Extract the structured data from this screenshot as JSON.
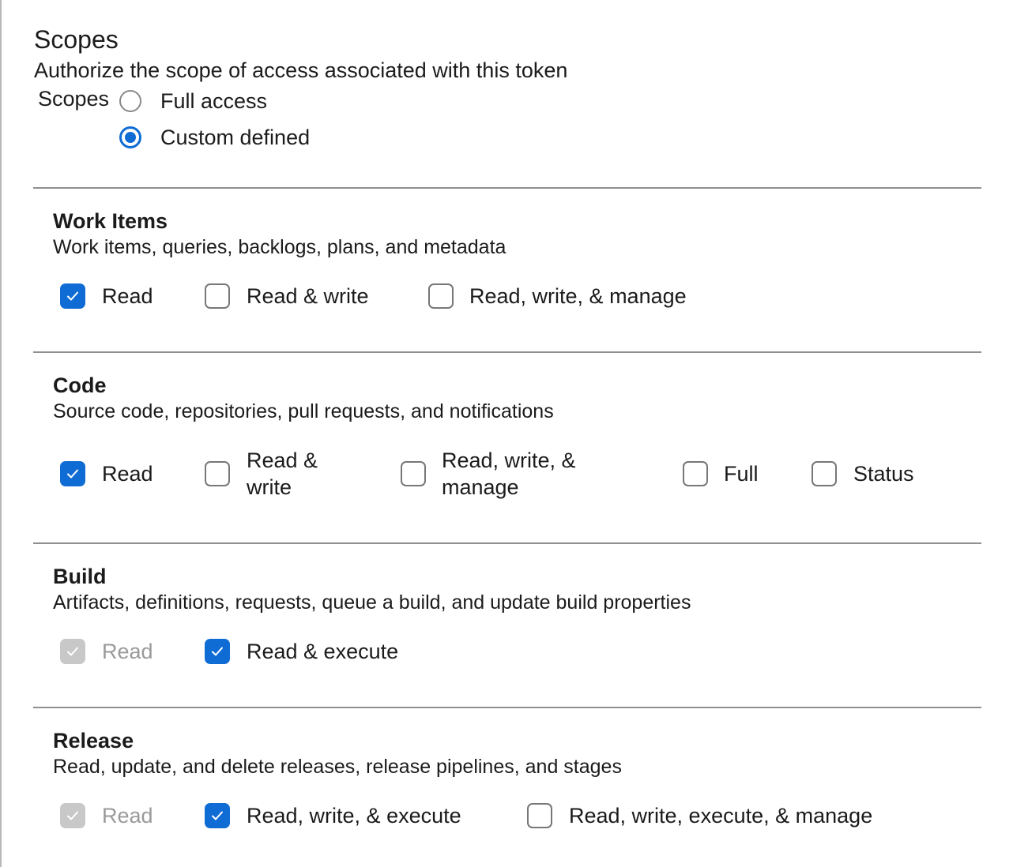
{
  "header": {
    "title": "Scopes",
    "subtitle": "Authorize the scope of access associated with this token"
  },
  "scope_selector": {
    "label": "Scopes",
    "options": [
      {
        "label": "Full access",
        "selected": false
      },
      {
        "label": "Custom defined",
        "selected": true
      }
    ]
  },
  "sections": [
    {
      "title": "Work Items",
      "description": "Work items, queries, backlogs, plans, and metadata",
      "options": [
        {
          "label": "Read",
          "state": "checked"
        },
        {
          "label": "Read & write",
          "state": "unchecked"
        },
        {
          "label": "Read, write, & manage",
          "state": "unchecked"
        }
      ]
    },
    {
      "title": "Code",
      "description": "Source code, repositories, pull requests, and notifications",
      "options": [
        {
          "label": "Read",
          "state": "checked"
        },
        {
          "label": "Read & write",
          "state": "unchecked"
        },
        {
          "label": "Read, write, & manage",
          "state": "unchecked"
        },
        {
          "label": "Full",
          "state": "unchecked"
        },
        {
          "label": "Status",
          "state": "unchecked"
        }
      ]
    },
    {
      "title": "Build",
      "description": "Artifacts, definitions, requests, queue a build, and update build properties",
      "options": [
        {
          "label": "Read",
          "state": "disabled-checked"
        },
        {
          "label": "Read & execute",
          "state": "checked"
        }
      ]
    },
    {
      "title": "Release",
      "description": "Read, update, and delete releases, release pipelines, and stages",
      "options": [
        {
          "label": "Read",
          "state": "disabled-checked"
        },
        {
          "label": "Read, write, & execute",
          "state": "checked"
        },
        {
          "label": "Read, write, execute, & manage",
          "state": "unchecked"
        }
      ]
    }
  ],
  "colors": {
    "accent": "#0f6cd4",
    "disabled": "#c8c8c8"
  }
}
